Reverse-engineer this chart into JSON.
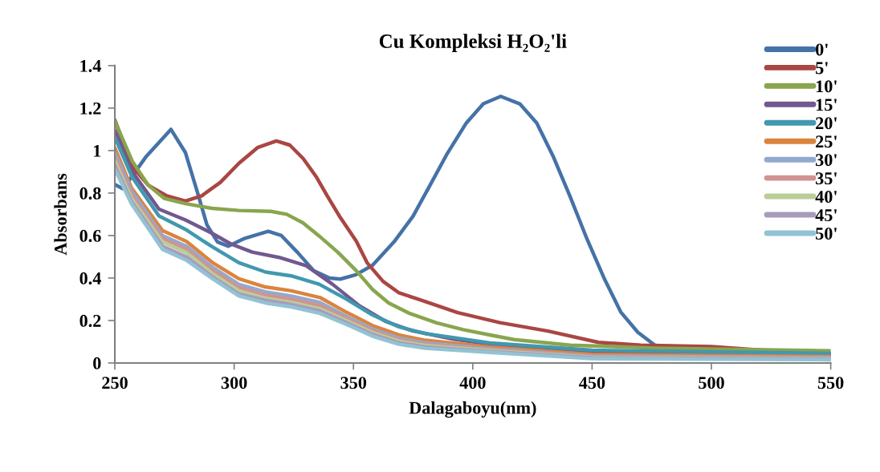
{
  "chart_data": {
    "type": "line",
    "title": "Cu Kompleksi H₂O₂'li",
    "xlabel": "Dalagaboyu(nm)",
    "ylabel": "Absorbans",
    "xlim": [
      250,
      550
    ],
    "xticks": [
      250,
      300,
      350,
      400,
      450,
      500,
      550
    ],
    "ylim": [
      0,
      1.4
    ],
    "yticks": [
      0,
      0.2,
      0.4,
      0.6,
      0.8,
      1,
      1.2,
      1.4
    ],
    "grid": false,
    "legend": "top right",
    "marker": "none",
    "line_style": "solid",
    "x": [
      250,
      257,
      270,
      280,
      291,
      302,
      313,
      324,
      336,
      347,
      358,
      369,
      380,
      407,
      450,
      550
    ],
    "series": [
      {
        "name": "0'",
        "color": "#4572a7",
        "x": [
          250,
          253.4,
          263,
          273.5,
          279.6,
          284.7,
          288.6,
          293,
          297.5,
          304,
          314.3,
          319.8,
          326.6,
          333.3,
          340,
          344.5,
          351,
          358,
          367,
          374.9,
          382,
          389,
          397.3,
          404.4,
          411.7,
          419.7,
          426.8,
          433.8,
          440.9,
          448,
          455,
          462,
          469.2,
          476.3,
          482,
          500,
          550
        ],
        "values": [
          0.84,
          0.82,
          0.97,
          1.1,
          0.99,
          0.8,
          0.65,
          0.57,
          0.55,
          0.585,
          0.62,
          0.6,
          0.52,
          0.435,
          0.4,
          0.395,
          0.415,
          0.46,
          0.57,
          0.69,
          0.835,
          0.98,
          1.13,
          1.22,
          1.255,
          1.22,
          1.13,
          0.97,
          0.78,
          0.58,
          0.4,
          0.24,
          0.144,
          0.084,
          0.064,
          0.048,
          0.044
        ]
      },
      {
        "name": "5'",
        "color": "#aa4643",
        "x": [
          250,
          257.3,
          264,
          271.8,
          279.6,
          286.4,
          294.2,
          302,
          309.8,
          317.7,
          323.3,
          328.9,
          334.5,
          339,
          344.4,
          351.2,
          355.7,
          362.4,
          369.1,
          377.2,
          393.7,
          411.4,
          431.5,
          452.7,
          470.4,
          500,
          550
        ],
        "values": [
          1.145,
          0.925,
          0.837,
          0.787,
          0.762,
          0.787,
          0.85,
          0.94,
          1.014,
          1.045,
          1.026,
          0.963,
          0.875,
          0.787,
          0.686,
          0.573,
          0.472,
          0.384,
          0.33,
          0.3,
          0.237,
          0.19,
          0.15,
          0.097,
          0.084,
          0.077,
          0.037
        ]
      },
      {
        "name": "10'",
        "color": "#89a54e",
        "x": [
          250,
          257.3,
          264,
          270.7,
          279.6,
          290.8,
          301.9,
          315.4,
          322,
          328.8,
          335.6,
          343.4,
          351.2,
          358,
          364.7,
          373.6,
          384.8,
          396,
          407.2,
          417.3,
          440.9,
          476.3,
          550
        ],
        "values": [
          1.14,
          0.95,
          0.837,
          0.775,
          0.75,
          0.728,
          0.718,
          0.714,
          0.7,
          0.66,
          0.598,
          0.522,
          0.434,
          0.346,
          0.283,
          0.233,
          0.189,
          0.157,
          0.132,
          0.11,
          0.084,
          0.07,
          0.057
        ]
      },
      {
        "name": "15'",
        "color": "#71588f",
        "x": [
          250,
          257.3,
          268.5,
          279.6,
          290.8,
          298.7,
          307.6,
          318.8,
          330,
          341.2,
          352.4,
          363.6,
          374.8,
          391.6,
          407.2,
          450,
          550
        ],
        "values": [
          1.095,
          0.9,
          0.724,
          0.673,
          0.61,
          0.56,
          0.522,
          0.497,
          0.459,
          0.371,
          0.27,
          0.195,
          0.151,
          0.113,
          0.088,
          0.05,
          0.04
        ]
      },
      {
        "name": "20'",
        "color": "#4198af",
        "x": [
          250,
          257.3,
          268.5,
          279.6,
          290.8,
          302,
          313.2,
          324.4,
          335.6,
          346.8,
          358,
          369.1,
          380.3,
          391.6,
          407.2,
          450,
          550
        ],
        "values": [
          1.063,
          0.874,
          0.692,
          0.629,
          0.547,
          0.472,
          0.428,
          0.409,
          0.371,
          0.302,
          0.226,
          0.17,
          0.138,
          0.12,
          0.094,
          0.06,
          0.045
        ]
      },
      {
        "name": "25'",
        "color": "#db843d",
        "values": [
          1.013,
          0.824,
          0.623,
          0.572,
          0.472,
          0.396,
          0.358,
          0.34,
          0.308,
          0.239,
          0.176,
          0.132,
          0.107,
          0.075,
          0.04,
          0.03
        ]
      },
      {
        "name": "30'",
        "color": "#93a9cf",
        "values": [
          0.99,
          0.81,
          0.6,
          0.55,
          0.45,
          0.37,
          0.335,
          0.315,
          0.285,
          0.22,
          0.16,
          0.118,
          0.095,
          0.067,
          0.033,
          0.026
        ]
      },
      {
        "name": "35'",
        "color": "#d19392",
        "values": [
          0.97,
          0.79,
          0.585,
          0.535,
          0.435,
          0.355,
          0.32,
          0.3,
          0.27,
          0.21,
          0.152,
          0.11,
          0.088,
          0.062,
          0.03,
          0.023
        ]
      },
      {
        "name": "40'",
        "color": "#b9cd96",
        "values": [
          0.95,
          0.775,
          0.57,
          0.52,
          0.42,
          0.34,
          0.305,
          0.285,
          0.255,
          0.2,
          0.143,
          0.103,
          0.082,
          0.058,
          0.027,
          0.02
        ]
      },
      {
        "name": "45'",
        "color": "#a99bbd",
        "values": [
          0.93,
          0.76,
          0.55,
          0.5,
          0.405,
          0.325,
          0.295,
          0.275,
          0.245,
          0.19,
          0.135,
          0.095,
          0.075,
          0.054,
          0.024,
          0.018
        ]
      },
      {
        "name": "50'",
        "color": "#92c3d4",
        "values": [
          0.912,
          0.749,
          0.535,
          0.484,
          0.396,
          0.315,
          0.283,
          0.264,
          0.233,
          0.182,
          0.126,
          0.088,
          0.069,
          0.05,
          0.02,
          0.015
        ]
      }
    ]
  }
}
